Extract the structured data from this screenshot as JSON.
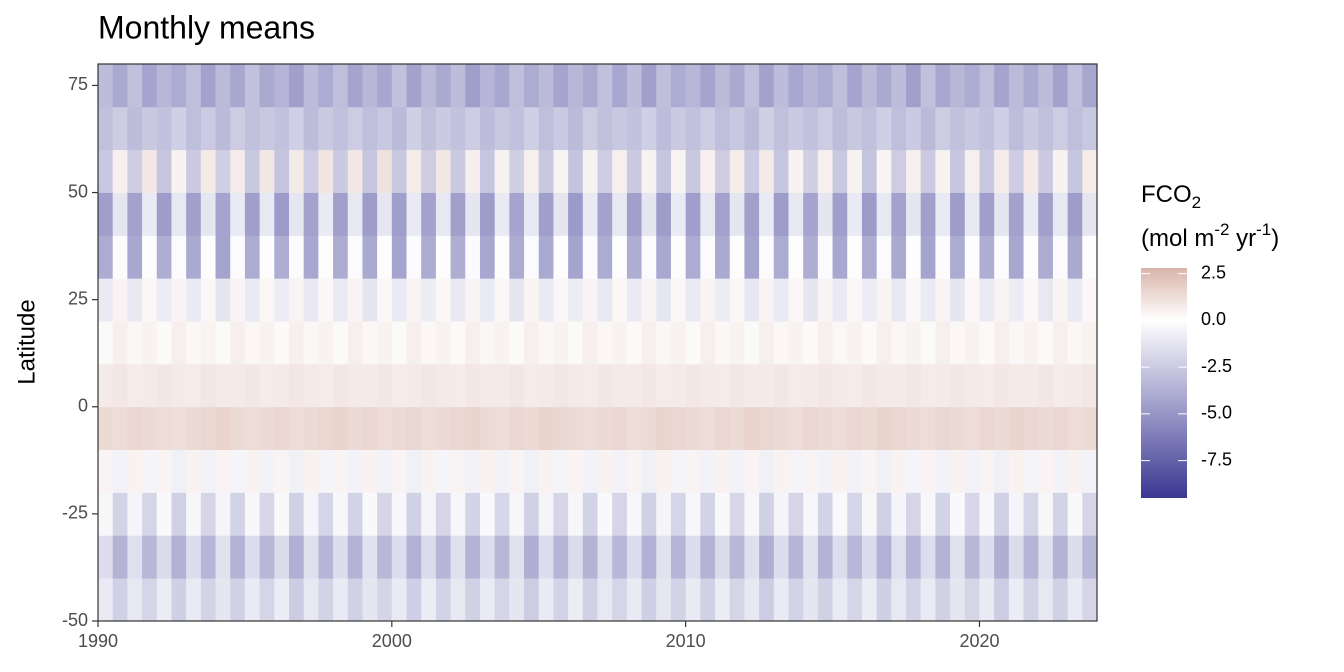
{
  "chart_data": {
    "type": "heatmap",
    "title": "Monthly means",
    "y_label": "Latitude",
    "legend_title": {
      "line1": [
        "FCO",
        "2"
      ],
      "line2": [
        "(mol m",
        "-2",
        " yr",
        "-1",
        ")"
      ]
    },
    "colors": {
      "low": "#3a3792",
      "mid": "#ffffff",
      "high": "#d8b4aa"
    },
    "xlim": [
      1990,
      2024
    ],
    "xticks": [
      1990,
      2000,
      2010,
      2020
    ],
    "ylim": [
      -50,
      80
    ],
    "yticks": [
      -50,
      -25,
      0,
      25,
      50,
      75
    ],
    "zlim": [
      -9.5,
      2.8
    ],
    "zticks": [
      2.5,
      {
        "value": 0,
        "label": "0.0"
      },
      -2.5,
      {
        "value": -5,
        "label": "-5.0"
      },
      -7.5
    ],
    "x": [
      1990,
      1990.5,
      1991,
      1991.5,
      1992,
      1992.5,
      1993,
      1993.5,
      1994,
      1994.5,
      1995,
      1995.5,
      1996,
      1996.5,
      1997,
      1997.5,
      1998,
      1998.5,
      1999,
      1999.5,
      2000,
      2000.5,
      2001,
      2001.5,
      2002,
      2002.5,
      2003,
      2003.5,
      2004,
      2004.5,
      2005,
      2005.5,
      2006,
      2006.5,
      2007,
      2007.5,
      2008,
      2008.5,
      2009,
      2009.5,
      2010,
      2010.5,
      2011,
      2011.5,
      2012,
      2012.5,
      2013,
      2013.5,
      2014,
      2014.5,
      2015,
      2015.5,
      2016,
      2016.5,
      2017,
      2017.5,
      2018,
      2018.5,
      2019,
      2019.5,
      2020,
      2020.5,
      2021,
      2021.5,
      2022,
      2022.5,
      2023,
      2023.5
    ],
    "y": [
      -45,
      -35,
      -25,
      -15,
      -5,
      5,
      15,
      25,
      35,
      45,
      55,
      65,
      75
    ],
    "z": [
      [
        -1.0,
        -2.2,
        -1.1,
        -2.0,
        -0.9,
        -2.3,
        -1.0,
        -2.1,
        -1.2,
        -2.2,
        -1.0,
        -2.0,
        -0.9,
        -2.4,
        -1.1,
        -2.1,
        -1.0,
        -2.2,
        -1.2,
        -2.0,
        -1.0,
        -2.3,
        -0.9,
        -2.1,
        -1.1,
        -2.2,
        -1.0,
        -2.0,
        -1.2,
        -2.4,
        -1.0,
        -2.1,
        -0.9,
        -2.2,
        -1.1,
        -2.0,
        -1.0,
        -2.3,
        -1.2,
        -2.1,
        -1.0,
        -2.2,
        -0.9,
        -2.0,
        -1.1,
        -2.4,
        -1.0,
        -2.1,
        -1.2,
        -2.2,
        -1.0,
        -2.0,
        -0.9,
        -2.3,
        -1.1,
        -2.1,
        -1.0,
        -2.2,
        -1.2,
        -2.0,
        -1.0,
        -2.4,
        -0.9,
        -2.1,
        -1.1,
        -2.2,
        -1.0,
        -2.0
      ],
      [
        -1.6,
        -3.6,
        -1.5,
        -3.4,
        -1.7,
        -3.7,
        -1.6,
        -3.5,
        -1.4,
        -3.6,
        -1.6,
        -3.4,
        -1.7,
        -3.8,
        -1.5,
        -3.5,
        -1.6,
        -3.6,
        -1.4,
        -3.4,
        -1.6,
        -3.7,
        -1.7,
        -3.5,
        -1.5,
        -3.6,
        -1.6,
        -3.4,
        -1.4,
        -3.8,
        -1.6,
        -3.5,
        -1.7,
        -3.6,
        -1.5,
        -3.4,
        -1.6,
        -3.7,
        -1.4,
        -3.5,
        -1.6,
        -3.6,
        -1.7,
        -3.4,
        -1.5,
        -3.8,
        -1.6,
        -3.5,
        -1.4,
        -3.6,
        -1.6,
        -3.4,
        -1.7,
        -3.7,
        -1.5,
        -3.5,
        -1.6,
        -3.6,
        -1.4,
        -3.4,
        -1.6,
        -3.8,
        -1.7,
        -3.5,
        -1.5,
        -3.6,
        -1.6,
        -3.4
      ],
      [
        -0.4,
        -2.1,
        -0.5,
        -2.0,
        -0.3,
        -2.2,
        -0.4,
        -2.0,
        -0.5,
        -2.1,
        -0.4,
        -1.9,
        -0.3,
        -2.2,
        -0.5,
        -2.0,
        -0.4,
        -2.1,
        -0.3,
        -2.0,
        -0.4,
        -2.2,
        -0.5,
        -2.0,
        -0.4,
        -2.1,
        -0.3,
        -1.9,
        -0.4,
        -2.2,
        -0.5,
        -2.0,
        -0.4,
        -2.1,
        -0.3,
        -2.0,
        -0.4,
        -2.2,
        -0.5,
        -2.0,
        -0.4,
        -2.1,
        -0.3,
        -1.9,
        -0.4,
        -2.2,
        -0.5,
        -2.0,
        -0.4,
        -2.1,
        -0.3,
        -2.0,
        -0.4,
        -2.2,
        -0.5,
        -2.0,
        -0.4,
        -2.1,
        -0.3,
        -1.9,
        -0.4,
        -2.2,
        -0.5,
        -2.0,
        -0.4,
        -2.1,
        -0.3,
        -2.0
      ],
      [
        0.4,
        -0.6,
        0.5,
        -0.5,
        0.4,
        -0.7,
        0.5,
        -0.6,
        0.4,
        -0.5,
        0.5,
        -0.6,
        0.4,
        -0.7,
        0.5,
        -0.5,
        0.4,
        -0.6,
        0.5,
        -0.6,
        0.4,
        -0.7,
        0.5,
        -0.5,
        0.4,
        -0.6,
        0.5,
        -0.6,
        0.4,
        -0.7,
        0.5,
        -0.5,
        0.4,
        -0.6,
        0.5,
        -0.6,
        0.4,
        -0.7,
        0.5,
        -0.5,
        0.4,
        -0.6,
        0.5,
        -0.6,
        0.4,
        -0.7,
        0.5,
        -0.5,
        0.4,
        -0.6,
        0.5,
        -0.6,
        0.4,
        -0.7,
        0.5,
        -0.5,
        0.4,
        -0.6,
        0.5,
        -0.6,
        0.4,
        -0.7,
        0.5,
        -0.5,
        0.4,
        -0.6,
        0.5,
        -0.6
      ],
      [
        1.4,
        1.3,
        1.5,
        1.4,
        1.3,
        1.2,
        1.4,
        1.5,
        1.6,
        1.4,
        1.3,
        1.4,
        1.5,
        1.3,
        1.4,
        1.5,
        1.6,
        1.4,
        1.5,
        1.3,
        1.4,
        1.5,
        1.3,
        1.4,
        1.5,
        1.6,
        1.4,
        1.3,
        1.5,
        1.4,
        1.6,
        1.5,
        1.4,
        1.3,
        1.4,
        1.5,
        1.3,
        1.4,
        1.6,
        1.5,
        1.4,
        1.3,
        1.5,
        1.4,
        1.6,
        1.5,
        1.4,
        1.3,
        1.5,
        1.4,
        1.3,
        1.5,
        1.4,
        1.6,
        1.5,
        1.4,
        1.3,
        1.5,
        1.4,
        1.3,
        1.5,
        1.4,
        1.6,
        1.5,
        1.4,
        1.5,
        1.3,
        1.4
      ],
      [
        0.8,
        0.9,
        0.7,
        0.8,
        0.9,
        0.8,
        0.7,
        0.9,
        0.8,
        0.8,
        0.9,
        0.7,
        0.8,
        0.9,
        0.8,
        0.7,
        0.9,
        0.8,
        0.8,
        0.9,
        0.7,
        0.8,
        0.9,
        0.8,
        0.7,
        0.9,
        0.8,
        0.8,
        0.9,
        0.7,
        0.8,
        0.9,
        0.8,
        0.7,
        0.9,
        0.8,
        0.8,
        0.9,
        0.7,
        0.8,
        0.9,
        0.8,
        0.7,
        0.9,
        0.8,
        0.8,
        0.9,
        0.7,
        0.8,
        0.9,
        0.8,
        0.7,
        0.9,
        0.8,
        0.8,
        0.9,
        0.7,
        0.8,
        0.9,
        0.8,
        0.7,
        0.9,
        0.8,
        0.8,
        0.9,
        0.7,
        0.8,
        0.9
      ],
      [
        0.2,
        0.6,
        0.3,
        0.5,
        0.2,
        0.6,
        0.3,
        0.5,
        0.2,
        0.6,
        0.3,
        0.5,
        0.2,
        0.6,
        0.3,
        0.5,
        0.2,
        0.6,
        0.3,
        0.5,
        0.2,
        0.6,
        0.3,
        0.5,
        0.2,
        0.6,
        0.3,
        0.5,
        0.2,
        0.6,
        0.3,
        0.5,
        0.2,
        0.6,
        0.3,
        0.5,
        0.2,
        0.6,
        0.3,
        0.5,
        0.2,
        0.6,
        0.3,
        0.5,
        0.2,
        0.6,
        0.3,
        0.5,
        0.2,
        0.6,
        0.3,
        0.5,
        0.2,
        0.6,
        0.3,
        0.5,
        0.2,
        0.6,
        0.3,
        0.5,
        0.2,
        0.6,
        0.3,
        0.5,
        0.2,
        0.6,
        0.3,
        0.5
      ],
      [
        -1.0,
        0.4,
        -1.1,
        0.3,
        -0.9,
        0.4,
        -1.0,
        0.3,
        -1.2,
        0.4,
        -1.0,
        0.3,
        -0.9,
        0.4,
        -1.1,
        0.3,
        -1.0,
        0.4,
        -1.2,
        0.3,
        -1.0,
        0.4,
        -0.9,
        0.3,
        -1.1,
        0.4,
        -1.0,
        0.3,
        -1.2,
        0.4,
        -1.0,
        0.3,
        -0.9,
        0.4,
        -1.1,
        0.3,
        -1.0,
        0.4,
        -1.2,
        0.3,
        -1.0,
        0.4,
        -0.9,
        0.3,
        -1.1,
        0.4,
        -1.0,
        0.3,
        -1.2,
        0.4,
        -1.0,
        0.3,
        -0.9,
        0.4,
        -1.1,
        0.3,
        -1.0,
        0.4,
        -1.2,
        0.3,
        -1.0,
        0.4,
        -0.9,
        0.3,
        -1.1,
        0.4,
        -1.0,
        0.3
      ],
      [
        -4.0,
        -0.2,
        -4.2,
        -0.1,
        -3.9,
        -0.2,
        -4.1,
        -0.1,
        -4.3,
        -0.2,
        -4.0,
        -0.1,
        -3.9,
        -0.2,
        -4.2,
        -0.1,
        -4.0,
        -0.2,
        -4.1,
        -0.1,
        -4.3,
        -0.2,
        -4.0,
        -0.1,
        -3.9,
        -0.2,
        -4.2,
        -0.1,
        -4.0,
        -0.2,
        -4.1,
        -0.1,
        -4.3,
        -0.2,
        -4.0,
        -0.1,
        -3.9,
        -0.2,
        -4.2,
        -0.1,
        -4.0,
        -0.2,
        -4.1,
        -0.1,
        -4.3,
        -0.2,
        -4.0,
        -0.1,
        -3.9,
        -0.2,
        -4.2,
        -0.1,
        -4.0,
        -0.2,
        -4.1,
        -0.1,
        -4.3,
        -0.2,
        -4.0,
        -0.1,
        -3.9,
        -0.2,
        -4.2,
        -0.1,
        -4.0,
        -0.2,
        -4.1,
        -0.1
      ],
      [
        -4.6,
        -1.2,
        -4.4,
        -1.0,
        -4.7,
        -1.1,
        -4.5,
        -1.2,
        -4.3,
        -1.0,
        -4.6,
        -1.1,
        -4.8,
        -1.2,
        -4.4,
        -1.0,
        -4.5,
        -1.1,
        -4.7,
        -1.2,
        -4.6,
        -1.0,
        -4.4,
        -1.1,
        -4.5,
        -1.2,
        -4.7,
        -1.0,
        -4.3,
        -1.1,
        -4.6,
        -1.2,
        -4.8,
        -1.0,
        -4.4,
        -1.1,
        -4.5,
        -1.2,
        -4.7,
        -1.0,
        -4.6,
        -1.1,
        -4.4,
        -1.2,
        -4.5,
        -1.0,
        -4.7,
        -1.1,
        -4.3,
        -1.2,
        -4.6,
        -1.0,
        -4.8,
        -1.1,
        -4.4,
        -1.2,
        -4.5,
        -1.0,
        -4.7,
        -1.1,
        -4.6,
        -1.2,
        -4.4,
        -1.0,
        -4.5,
        -1.1,
        -4.7,
        -1.2
      ],
      [
        -2.6,
        0.6,
        -2.4,
        0.9,
        -2.7,
        0.5,
        -2.5,
        0.8,
        -2.3,
        0.7,
        -2.6,
        0.9,
        -2.8,
        0.8,
        -2.4,
        1.0,
        -2.5,
        0.9,
        -2.7,
        1.1,
        -2.6,
        0.7,
        -2.4,
        0.9,
        -2.5,
        0.6,
        -2.7,
        0.5,
        -2.3,
        0.6,
        -2.6,
        0.4,
        -2.8,
        0.5,
        -2.4,
        0.6,
        -2.5,
        0.5,
        -2.7,
        0.4,
        -2.6,
        0.6,
        -2.4,
        0.7,
        -2.5,
        0.8,
        -2.7,
        0.5,
        -2.3,
        0.6,
        -2.6,
        0.5,
        -2.8,
        0.4,
        -2.4,
        0.6,
        -2.5,
        0.5,
        -2.7,
        0.6,
        -2.6,
        0.7,
        -2.4,
        0.8,
        -2.5,
        0.5,
        -2.7,
        0.7
      ],
      [
        -3.0,
        -2.4,
        -3.2,
        -2.6,
        -2.9,
        -2.3,
        -3.1,
        -2.5,
        -3.3,
        -2.4,
        -3.0,
        -2.6,
        -2.9,
        -2.3,
        -3.2,
        -2.5,
        -3.0,
        -2.4,
        -3.1,
        -2.6,
        -3.3,
        -2.3,
        -3.0,
        -2.5,
        -2.9,
        -2.4,
        -3.2,
        -2.6,
        -3.0,
        -2.3,
        -3.1,
        -2.5,
        -3.3,
        -2.4,
        -3.0,
        -2.6,
        -2.9,
        -2.3,
        -3.2,
        -2.5,
        -3.0,
        -2.4,
        -3.1,
        -2.6,
        -3.3,
        -2.3,
        -3.0,
        -2.5,
        -2.9,
        -2.4,
        -3.2,
        -2.6,
        -3.0,
        -2.3,
        -3.1,
        -2.5,
        -3.3,
        -2.4,
        -3.0,
        -2.6,
        -2.9,
        -2.3,
        -3.2,
        -2.5,
        -3.0,
        -2.4,
        -3.1,
        -2.6
      ],
      [
        -3.2,
        -4.1,
        -3.0,
        -4.3,
        -3.4,
        -4.0,
        -3.1,
        -4.4,
        -3.3,
        -4.2,
        -3.0,
        -4.1,
        -3.5,
        -4.5,
        -3.2,
        -4.0,
        -3.1,
        -4.3,
        -3.4,
        -4.2,
        -3.0,
        -4.4,
        -3.3,
        -4.1,
        -3.2,
        -4.6,
        -3.5,
        -4.2,
        -3.1,
        -4.0,
        -3.3,
        -4.3,
        -3.4,
        -4.1,
        -3.0,
        -4.2,
        -3.2,
        -4.5,
        -3.1,
        -4.0,
        -3.4,
        -4.3,
        -3.3,
        -4.1,
        -3.0,
        -4.4,
        -3.2,
        -4.2,
        -3.5,
        -4.0,
        -3.1,
        -4.3,
        -3.3,
        -4.1,
        -3.2,
        -4.5,
        -3.0,
        -4.2,
        -3.4,
        -4.0,
        -3.1,
        -4.3,
        -3.3,
        -4.1,
        -3.2,
        -4.4,
        -3.0,
        -4.2
      ]
    ]
  }
}
